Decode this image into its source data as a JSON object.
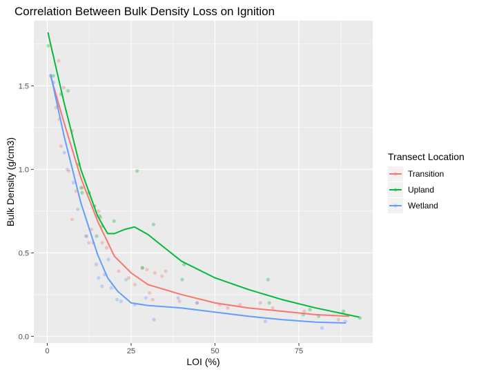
{
  "chart_data": {
    "type": "scatter",
    "title": "Correlation Between Bulk Density Loss on Ignition",
    "xlabel": "LOI (%)",
    "ylabel": "Bulk Density (g/cm3)",
    "xlim": [
      -4,
      97
    ],
    "ylim": [
      -0.04,
      1.89
    ],
    "xticks": [
      0,
      25,
      50,
      75
    ],
    "xtick_labels": [
      "0",
      "25",
      "50",
      "75"
    ],
    "yticks": [
      0.0,
      0.5,
      1.0,
      1.5
    ],
    "ytick_labels": [
      "0.0",
      "0.5",
      "1.0",
      "1.5"
    ],
    "grid": true,
    "legend": {
      "title": "Transect Location",
      "position": "right"
    },
    "series": [
      {
        "name": "Transition",
        "color": "#F8766D",
        "points": [
          [
            3.4,
            1.65
          ],
          [
            2.6,
            1.37
          ],
          [
            4.9,
            1.49
          ],
          [
            3.6,
            1.3
          ],
          [
            4.1,
            1.14
          ],
          [
            7.4,
            1.23
          ],
          [
            6.4,
            0.99
          ],
          [
            8.6,
            0.87
          ],
          [
            10.5,
            0.89
          ],
          [
            7.4,
            0.7
          ],
          [
            11.6,
            0.6
          ],
          [
            13.2,
            0.64
          ],
          [
            15.3,
            0.75
          ],
          [
            15.9,
            0.71
          ],
          [
            12.4,
            0.56
          ],
          [
            16.4,
            0.56
          ],
          [
            17.7,
            0.53
          ],
          [
            21.3,
            0.39
          ],
          [
            24.3,
            0.35
          ],
          [
            26.1,
            0.31
          ],
          [
            28.3,
            0.41
          ],
          [
            29.7,
            0.4
          ],
          [
            30.5,
            0.26
          ],
          [
            31.4,
            0.22
          ],
          [
            32.1,
            0.38
          ],
          [
            34.2,
            0.36
          ],
          [
            35.3,
            0.39
          ],
          [
            39.4,
            0.21
          ],
          [
            44.6,
            0.2
          ],
          [
            51.4,
            0.19
          ],
          [
            53.8,
            0.17
          ],
          [
            57.4,
            0.19
          ],
          [
            63.5,
            0.2
          ],
          [
            67.2,
            0.17
          ],
          [
            76.6,
            0.15
          ],
          [
            86.8,
            0.1
          ]
        ],
        "trend": [
          [
            1,
            1.56
          ],
          [
            5,
            1.28
          ],
          [
            10,
            0.95
          ],
          [
            15,
            0.69
          ],
          [
            20,
            0.48
          ],
          [
            25,
            0.38
          ],
          [
            30,
            0.31
          ],
          [
            40,
            0.25
          ],
          [
            50,
            0.2
          ],
          [
            60,
            0.17
          ],
          [
            70,
            0.15
          ],
          [
            80,
            0.13
          ],
          [
            90,
            0.12
          ]
        ]
      },
      {
        "name": "Upland",
        "color": "#00BA38",
        "points": [
          [
            0.3,
            1.74
          ],
          [
            1.8,
            1.56
          ],
          [
            4.1,
            1.45
          ],
          [
            6.2,
            1.47
          ],
          [
            9.4,
            1.03
          ],
          [
            10.4,
            0.86
          ],
          [
            10.1,
            0.89
          ],
          [
            12.5,
            0.86
          ],
          [
            14.1,
            0.78
          ],
          [
            15.6,
            0.72
          ],
          [
            16.4,
            0.66
          ],
          [
            14.7,
            0.6
          ],
          [
            19.9,
            0.69
          ],
          [
            26.8,
            0.99
          ],
          [
            31.7,
            0.67
          ],
          [
            28.4,
            0.41
          ],
          [
            40.8,
            0.43
          ],
          [
            40.2,
            0.34
          ],
          [
            65.8,
            0.34
          ],
          [
            66.2,
            0.2
          ],
          [
            76.3,
            0.13
          ],
          [
            78.3,
            0.16
          ],
          [
            80.9,
            0.12
          ],
          [
            88.3,
            0.15
          ],
          [
            93.2,
            0.11
          ]
        ],
        "trend": [
          [
            0.2,
            1.82
          ],
          [
            5,
            1.4
          ],
          [
            10,
            1.0
          ],
          [
            15,
            0.72
          ],
          [
            18,
            0.615
          ],
          [
            20,
            0.615
          ],
          [
            23,
            0.64
          ],
          [
            26,
            0.655
          ],
          [
            30,
            0.61
          ],
          [
            35,
            0.53
          ],
          [
            40,
            0.45
          ],
          [
            50,
            0.35
          ],
          [
            60,
            0.28
          ],
          [
            70,
            0.22
          ],
          [
            80,
            0.17
          ],
          [
            93,
            0.115
          ]
        ]
      },
      {
        "name": "Wetland",
        "color": "#619CFF",
        "points": [
          [
            1,
            1.56
          ],
          [
            1.9,
            1.52
          ],
          [
            3.2,
            1.38
          ],
          [
            5.1,
            1.1
          ],
          [
            6,
            1.0
          ],
          [
            7.8,
            0.92
          ],
          [
            9.1,
            0.76
          ],
          [
            11.7,
            0.6
          ],
          [
            13.7,
            0.56
          ],
          [
            14.6,
            0.43
          ],
          [
            15.3,
            0.35
          ],
          [
            17.1,
            0.37
          ],
          [
            18.2,
            0.46
          ],
          [
            16.3,
            0.3
          ],
          [
            19.1,
            0.29
          ],
          [
            20.8,
            0.22
          ],
          [
            22,
            0.21
          ],
          [
            23.5,
            0.34
          ],
          [
            26.1,
            0.19
          ],
          [
            29.4,
            0.23
          ],
          [
            31.8,
            0.1
          ],
          [
            39,
            0.23
          ],
          [
            44.7,
            0.2
          ],
          [
            65,
            0.09
          ],
          [
            81.9,
            0.05
          ],
          [
            88.9,
            0.09
          ]
        ],
        "trend": [
          [
            1,
            1.57
          ],
          [
            5,
            1.2
          ],
          [
            10,
            0.8
          ],
          [
            15,
            0.49
          ],
          [
            18,
            0.35
          ],
          [
            21,
            0.27
          ],
          [
            25,
            0.2
          ],
          [
            30,
            0.185
          ],
          [
            40,
            0.17
          ],
          [
            50,
            0.145
          ],
          [
            60,
            0.12
          ],
          [
            70,
            0.1
          ],
          [
            80,
            0.085
          ],
          [
            89,
            0.08
          ]
        ]
      }
    ]
  }
}
